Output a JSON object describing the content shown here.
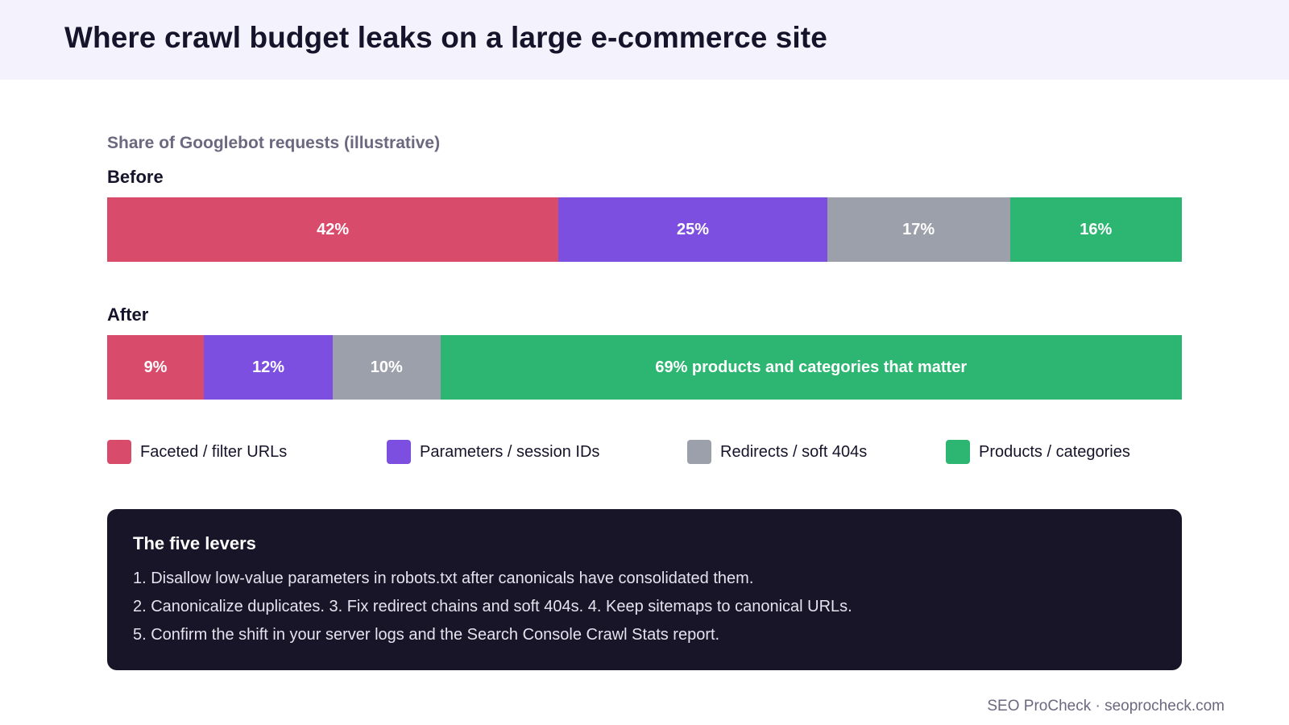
{
  "title": "Where crawl budget leaks on a large e-commerce site",
  "chart_data": {
    "type": "bar",
    "orientation": "horizontal-stacked-100",
    "title": "Share of Googlebot requests (illustrative)",
    "unit": "%",
    "categories": [
      "Before",
      "After"
    ],
    "series": [
      {
        "name": "Faceted / filter URLs",
        "color": "#d94b6b",
        "values": [
          42,
          9
        ],
        "labels": [
          "42%",
          "9%"
        ]
      },
      {
        "name": "Parameters / session IDs",
        "color": "#7c4fe0",
        "values": [
          25,
          12
        ],
        "labels": [
          "25%",
          "12%"
        ]
      },
      {
        "name": "Redirects / soft 404s",
        "color": "#9ca0aa",
        "values": [
          17,
          10
        ],
        "labels": [
          "17%",
          "10%"
        ]
      },
      {
        "name": "Products / categories",
        "color": "#2db672",
        "values": [
          16,
          69
        ],
        "labels": [
          "16%",
          "69% products and categories that matter"
        ]
      }
    ],
    "legend": "bottom"
  },
  "levers": {
    "title": "The five levers",
    "lines": [
      "1. Disallow low-value parameters in robots.txt after canonicals have consolidated them.",
      "2. Canonicalize duplicates. 3. Fix redirect chains and soft 404s. 4. Keep sitemaps to canonical URLs.",
      "5. Confirm the shift in your server logs and the Search Console Crawl Stats report."
    ]
  },
  "footer": "SEO ProCheck · seoprocheck.com"
}
